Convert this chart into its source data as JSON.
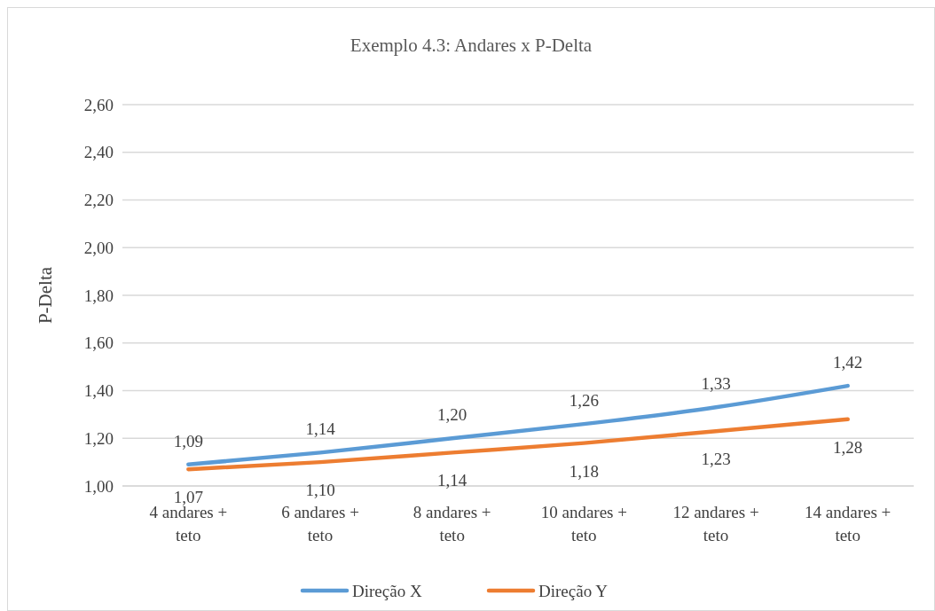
{
  "chart_data": {
    "type": "line",
    "title": "Exemplo 4.3: Andares x P-Delta",
    "ylabel": "P-Delta",
    "categories": [
      "4 andares + teto",
      "6 andares + teto",
      "8 andares + teto",
      "10 andares + teto",
      "12 andares + teto",
      "14 andares + teto"
    ],
    "series": [
      {
        "name": "Direção X",
        "color": "#5b9bd5",
        "values": [
          1.09,
          1.14,
          1.2,
          1.26,
          1.33,
          1.42
        ],
        "value_labels": [
          "1,09",
          "1,14",
          "1,20",
          "1,26",
          "1,33",
          "1,42"
        ]
      },
      {
        "name": "Direção Y",
        "color": "#ed7d31",
        "values": [
          1.07,
          1.1,
          1.14,
          1.18,
          1.23,
          1.28
        ],
        "value_labels": [
          "1,07",
          "1,10",
          "1,14",
          "1,18",
          "1,23",
          "1,28"
        ]
      }
    ],
    "ylim": [
      1.0,
      2.6
    ],
    "yticks": [
      {
        "value": 1.0,
        "label": "1,00"
      },
      {
        "value": 1.2,
        "label": "1,20"
      },
      {
        "value": 1.4,
        "label": "1,40"
      },
      {
        "value": 1.6,
        "label": "1,60"
      },
      {
        "value": 1.8,
        "label": "1,80"
      },
      {
        "value": 2.0,
        "label": "2,00"
      },
      {
        "value": 2.2,
        "label": "2,20"
      },
      {
        "value": 2.4,
        "label": "2,40"
      },
      {
        "value": 2.6,
        "label": "2,60"
      }
    ],
    "grid": "y",
    "legend": "bottom",
    "marker": "none",
    "line_style": "solid"
  }
}
